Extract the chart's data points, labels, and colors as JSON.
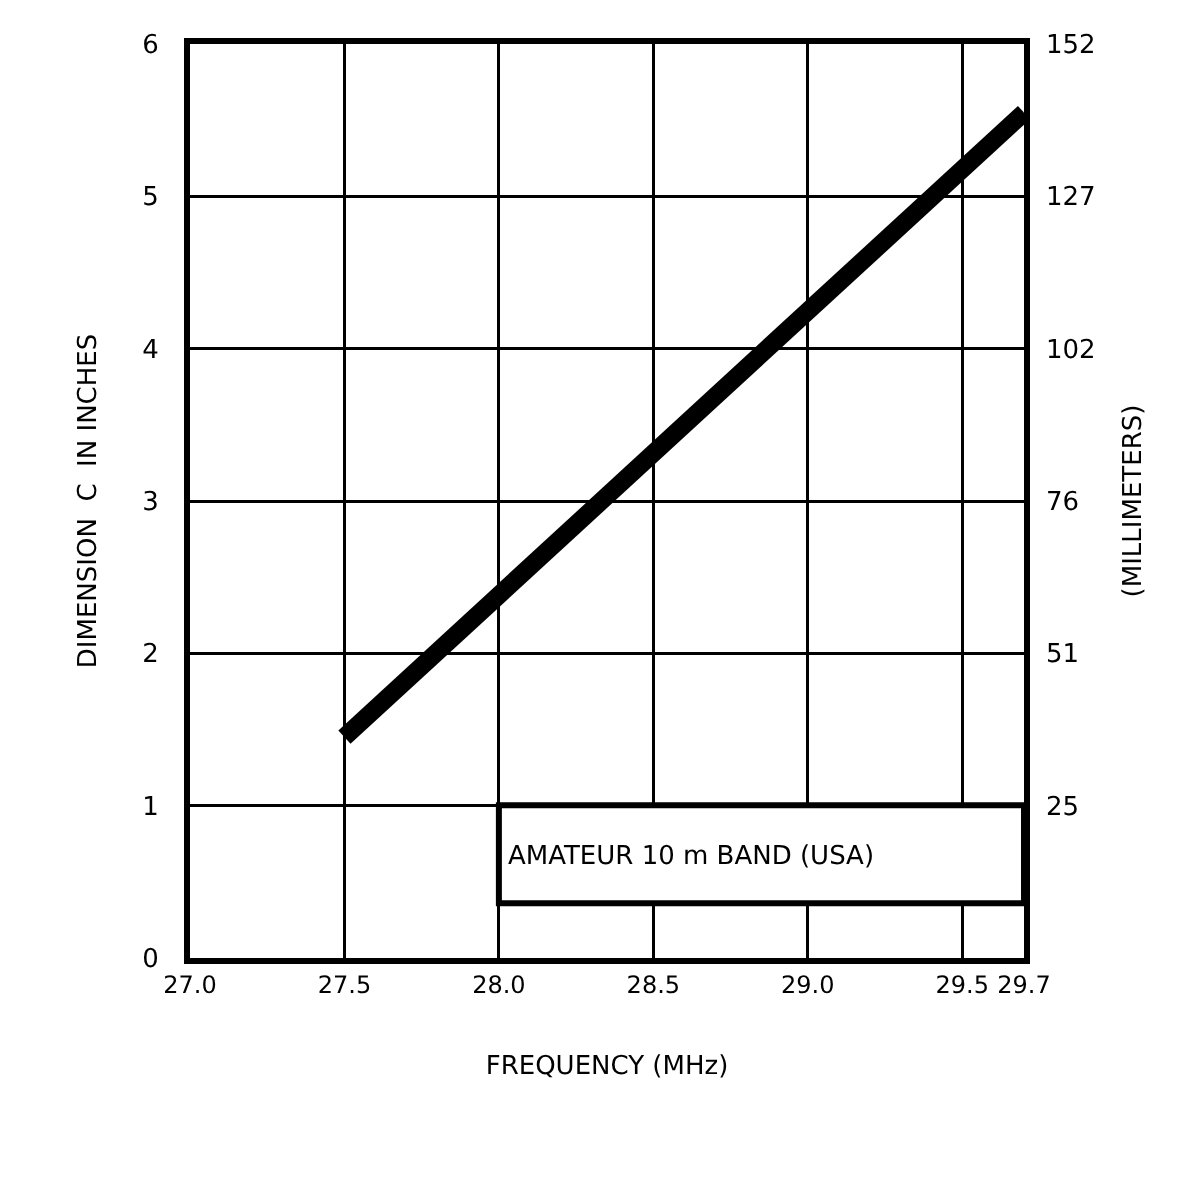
{
  "chart_data": {
    "type": "line",
    "xlabel": "FREQUENCY (MHz)",
    "ylabel": "DIMENSION  C  IN INCHES",
    "y2label": "(MILLIMETERS)",
    "x": [
      27.5,
      29.7
    ],
    "series": [
      {
        "color": "#000000",
        "values": [
          1.45,
          5.55
        ]
      }
    ],
    "xlim": [
      27.0,
      29.7
    ],
    "xticks": [
      {
        "value": 27.0,
        "label": "27.0"
      },
      {
        "value": 27.5,
        "label": "27.5"
      },
      {
        "value": 28.0,
        "label": "28.0"
      },
      {
        "value": 28.5,
        "label": "28.5"
      },
      {
        "value": 29.0,
        "label": "29.0"
      },
      {
        "value": 29.5,
        "label": "29.5"
      },
      29.7
    ],
    "ylim": [
      0,
      6
    ],
    "yticks": [
      0,
      1,
      2,
      3,
      4,
      5,
      6
    ],
    "y2lim": [
      0,
      152.4
    ],
    "y2ticks": [
      {
        "value": 25.4,
        "label": "25"
      },
      {
        "value": 50.8,
        "label": "51"
      },
      {
        "value": 76.2,
        "label": "76"
      },
      {
        "value": 101.6,
        "label": "102"
      },
      {
        "value": 127,
        "label": "127"
      },
      {
        "value": 152.4,
        "label": "152"
      }
    ],
    "bands": [
      {
        "axis": "x",
        "from": 28.0,
        "to": 29.7,
        "label": "AMATEUR 10 m BAND (USA)"
      }
    ],
    "grid": true,
    "line_style": "solid"
  }
}
